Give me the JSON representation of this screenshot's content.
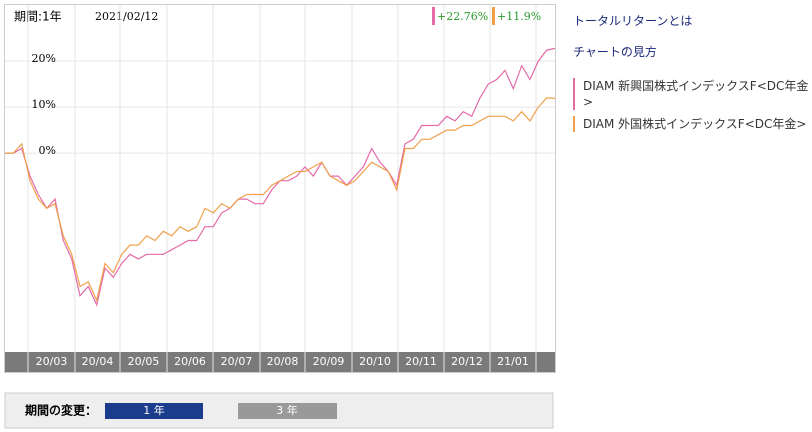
{
  "chart_data": {
    "type": "line",
    "period_label": "期間:1年",
    "date": "2021/02/12",
    "ylim": [
      -42.8,
      32.2
    ],
    "yticks": [
      {
        "value": 20,
        "label": "20%"
      },
      {
        "value": 10,
        "label": "10%"
      },
      {
        "value": 0,
        "label": "0%"
      }
    ],
    "grid": true,
    "month_labels": [
      "20/03",
      "20/04",
      "20/05",
      "20/06",
      "20/07",
      "20/08",
      "20/09",
      "20/10",
      "20/11",
      "20/12",
      "21/01"
    ],
    "series": [
      {
        "name": "DIAM 新興国株式インデックスF<DC年金>",
        "color": "#e46aa8",
        "end_label": "+22.76%",
        "values": [
          0,
          0,
          1,
          -5,
          -9,
          -12,
          -10,
          -19,
          -23,
          -31,
          -29,
          -33,
          -25,
          -27,
          -24,
          -22,
          -23,
          -22,
          -22,
          -22,
          -21,
          -20,
          -19,
          -19,
          -16,
          -16,
          -13,
          -12,
          -10,
          -10,
          -11,
          -11,
          -8,
          -6,
          -6,
          -5,
          -3,
          -5,
          -2,
          -5,
          -5,
          -7,
          -5,
          -3,
          1,
          -2,
          -4,
          -7,
          2,
          3,
          6,
          6,
          6,
          8,
          7,
          9,
          8,
          12,
          15,
          16,
          18,
          14,
          19,
          16,
          20,
          22.4,
          22.76
        ]
      },
      {
        "name": "DIAM 外国株式インデックスF<DC年金>",
        "color": "#f0a04b",
        "end_label": "+11.9%",
        "values": [
          0,
          0,
          2,
          -6,
          -10,
          -12,
          -11,
          -18,
          -22,
          -29,
          -28,
          -32,
          -24,
          -26,
          -22,
          -20,
          -20,
          -18,
          -19,
          -17,
          -18,
          -16,
          -17,
          -16,
          -12,
          -13,
          -11,
          -12,
          -10,
          -9,
          -9,
          -9,
          -7,
          -6,
          -5,
          -4,
          -4,
          -3,
          -2,
          -5,
          -6,
          -7,
          -6,
          -4,
          -2,
          -3,
          -4,
          -8,
          1,
          1,
          3,
          3,
          4,
          5,
          5,
          6,
          6,
          7,
          8,
          8,
          8,
          7,
          9,
          7,
          10,
          12,
          11.9
        ]
      }
    ]
  },
  "links": [
    "トータルリターンとは",
    "チャートの見方"
  ],
  "period_change": {
    "label": "期間の変更：",
    "buttons": [
      "1 年",
      "3 年"
    ]
  }
}
